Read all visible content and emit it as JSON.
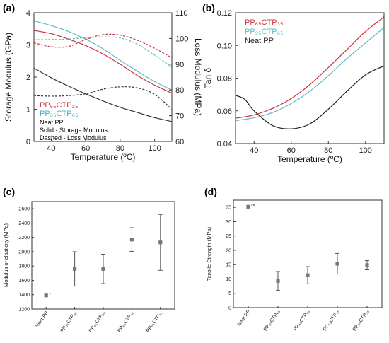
{
  "chart_data": [
    {
      "panel": "(a)",
      "type": "line",
      "xlabel": "Temperature (ºC)",
      "ylabel": "Storage Modulus (GPa)",
      "ylabel2": "Loss Modulus (MPa)",
      "xlim": [
        30,
        110
      ],
      "ylim": [
        0,
        4
      ],
      "ylim2": [
        60,
        110
      ],
      "xticks": [
        "40",
        "60",
        "80",
        "100"
      ],
      "yticks": [
        "0",
        "1",
        "2",
        "3",
        "4"
      ],
      "yticks2": [
        "60",
        "70",
        "80",
        "90",
        "100",
        "110"
      ],
      "legend": {
        "line1": "PP₆₅CTP₃₅",
        "line2": "PP₃₅CTP₆₅",
        "line3": "Neat PP",
        "line4": "Solid - Storage Modulus",
        "line5": "Dashed - Loss Modulus"
      },
      "series": [
        {
          "name": "PP₆₅CTP₃₅",
          "kind": "storage",
          "color": "#c8323c",
          "x": [
            30,
            40,
            50,
            60,
            70,
            80,
            90,
            100,
            110
          ],
          "values": [
            3.45,
            3.35,
            3.18,
            2.98,
            2.72,
            2.4,
            2.05,
            1.75,
            1.5
          ]
        },
        {
          "name": "PP₃₅CTP₆₅",
          "kind": "storage",
          "color": "#5bbcc8",
          "x": [
            30,
            40,
            50,
            60,
            70,
            80,
            90,
            100,
            110
          ],
          "values": [
            3.75,
            3.6,
            3.42,
            3.18,
            2.88,
            2.52,
            2.18,
            1.86,
            1.6
          ]
        },
        {
          "name": "Neat PP",
          "kind": "storage",
          "color": "#333333",
          "x": [
            30,
            40,
            50,
            60,
            70,
            80,
            90,
            100,
            110
          ],
          "values": [
            2.28,
            1.98,
            1.72,
            1.48,
            1.26,
            1.06,
            0.9,
            0.74,
            0.62
          ]
        },
        {
          "name": "PP₆₅CTP₃₅",
          "kind": "loss",
          "color": "#c8323c",
          "x": [
            30,
            40,
            50,
            60,
            70,
            80,
            90,
            100,
            110
          ],
          "values": [
            98.3,
            96.8,
            96.9,
            99.6,
            101.5,
            101.3,
            99.3,
            96.2,
            92.5
          ]
        },
        {
          "name": "PP₃₅CTP₆₅",
          "kind": "loss",
          "color": "#5bbcc8",
          "x": [
            30,
            40,
            50,
            60,
            70,
            80,
            90,
            100,
            110
          ],
          "values": [
            99.5,
            99.6,
            99.8,
            100.3,
            100.6,
            100.2,
            97.8,
            93.5,
            88.8
          ]
        },
        {
          "name": "Neat PP",
          "kind": "loss",
          "color": "#333333",
          "x": [
            30,
            40,
            50,
            60,
            70,
            80,
            90,
            100,
            110
          ],
          "values": [
            77.8,
            77.6,
            77.8,
            78.5,
            80.3,
            81.2,
            80.8,
            78.3,
            72.5
          ]
        }
      ]
    },
    {
      "panel": "(b)",
      "type": "line",
      "xlabel": "Temperature (ºC)",
      "ylabel": "Tan δ",
      "xlim": [
        30,
        110
      ],
      "ylim": [
        0.04,
        0.12
      ],
      "xticks": [
        "40",
        "60",
        "80",
        "100"
      ],
      "yticks": [
        "0.04",
        "0.06",
        "0.08",
        "0.10",
        "0.12"
      ],
      "series": [
        {
          "name": "PP₆₅CTP₃₅",
          "color": "#c8323c",
          "x": [
            30,
            40,
            50,
            60,
            70,
            80,
            90,
            100,
            110
          ],
          "values": [
            0.0555,
            0.0575,
            0.0615,
            0.0675,
            0.076,
            0.0865,
            0.0975,
            0.1085,
            0.1175
          ]
        },
        {
          "name": "PP₃₅CTP₆₅",
          "color": "#5bbcc8",
          "x": [
            30,
            40,
            50,
            60,
            70,
            80,
            90,
            100,
            110
          ],
          "values": [
            0.054,
            0.0558,
            0.059,
            0.0645,
            0.072,
            0.0815,
            0.092,
            0.1015,
            0.111
          ]
        },
        {
          "name": "Neat PP",
          "color": "#222222",
          "x": [
            30,
            35,
            40,
            50,
            60,
            70,
            80,
            90,
            100,
            110
          ],
          "values": [
            0.0695,
            0.067,
            0.06,
            0.051,
            0.049,
            0.052,
            0.061,
            0.072,
            0.082,
            0.0875
          ]
        }
      ]
    },
    {
      "panel": "(c)",
      "type": "scatter",
      "ylabel": "Modulus of elasticity (MPa)",
      "ylim": [
        1200,
        2700
      ],
      "yticks": [
        "1200",
        "1400",
        "1600",
        "1800",
        "2000",
        "2200",
        "2400",
        "2600"
      ],
      "categories": [
        "Neat PP",
        "PP₆₅CTP₃₅",
        "PP₅₀CTP₅₀",
        "PP₆₅CTP₃₅",
        "PP₆₅CTP₃₅"
      ],
      "values": [
        1390,
        1760,
        1760,
        2170,
        2130
      ],
      "errors": [
        0,
        240,
        205,
        165,
        390
      ],
      "marker": "*",
      "marker_color": "#d8342c"
    },
    {
      "panel": "(d)",
      "type": "scatter",
      "ylabel": "Tensile Strength (MPa)",
      "ylim": [
        0,
        37.5
      ],
      "yticks": [
        "0",
        "5",
        "10",
        "15",
        "20",
        "25",
        "30",
        "35"
      ],
      "categories": [
        "Neat PP",
        "PP₃₅CTP₆₅",
        "PP₄₅CTP₅₅",
        "PP₅₅CTP₄₅",
        "PP₆₅CTP₃₅"
      ],
      "values": [
        35.2,
        9.3,
        11.3,
        15.3,
        14.8
      ],
      "errors": [
        0,
        3.3,
        3.0,
        3.6,
        1.6
      ],
      "marker": "**",
      "marker_color": "#d8342c"
    }
  ]
}
